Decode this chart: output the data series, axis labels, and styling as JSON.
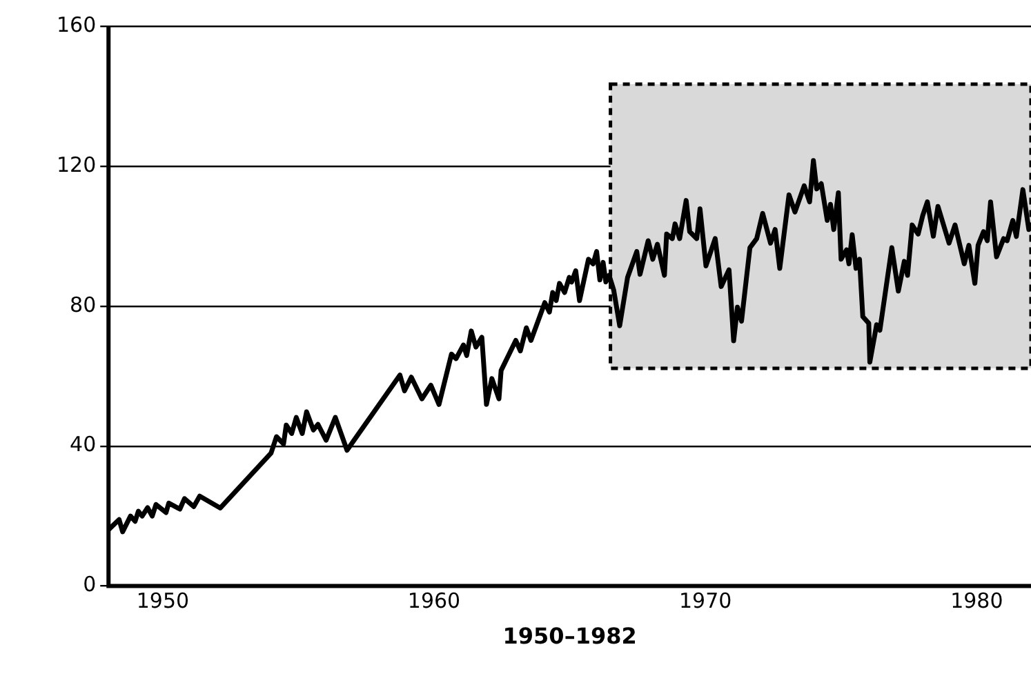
{
  "chart_data": {
    "type": "line",
    "xlabel": "1950–1982",
    "xlim": [
      1948,
      1982
    ],
    "xticks": [
      1950,
      1960,
      1970,
      1980
    ],
    "ylim": [
      0,
      160
    ],
    "yticks": [
      0,
      40,
      80,
      120,
      160
    ],
    "grid": "y",
    "bands": [
      {
        "axis": "x",
        "from": 1966.5,
        "to": 1982,
        "color": "#d9d9d9"
      }
    ],
    "legend": false,
    "marker": "none",
    "line_style": "solid",
    "series": [
      {
        "color": "#000000",
        "x": [
          1948.0,
          1948.39,
          1948.52,
          1948.81,
          1948.98,
          1949.1,
          1949.24,
          1949.44,
          1949.61,
          1949.75,
          1950.12,
          1950.22,
          1950.63,
          1950.8,
          1951.14,
          1951.36,
          1952.12,
          1953.99,
          1954.19,
          1954.45,
          1954.55,
          1954.75,
          1954.92,
          1955.14,
          1955.3,
          1955.55,
          1955.72,
          1956.02,
          1956.36,
          1956.79,
          1958.74,
          1958.91,
          1959.16,
          1959.55,
          1959.88,
          1960.18,
          1960.64,
          1960.81,
          1961.08,
          1961.2,
          1961.37,
          1961.54,
          1961.76,
          1961.93,
          1962.13,
          1962.39,
          1962.47,
          1963.01,
          1963.18,
          1963.4,
          1963.57,
          1964.08,
          1964.25,
          1964.37,
          1964.5,
          1964.62,
          1964.81,
          1964.98,
          1965.07,
          1965.22,
          1965.36,
          1965.69,
          1965.86,
          1965.99,
          1966.11,
          1966.23,
          1966.33,
          1966.45,
          1966.62,
          1966.84,
          1967.13,
          1967.47,
          1967.59,
          1967.89,
          1968.06,
          1968.23,
          1968.49,
          1968.57,
          1968.78,
          1968.88,
          1969.05,
          1969.29,
          1969.42,
          1969.68,
          1969.8,
          1970.02,
          1970.36,
          1970.58,
          1970.87,
          1971.04,
          1971.18,
          1971.33,
          1971.64,
          1971.89,
          1972.11,
          1972.4,
          1972.57,
          1972.74,
          1973.08,
          1973.3,
          1973.64,
          1973.84,
          1973.98,
          1974.1,
          1974.27,
          1974.49,
          1974.61,
          1974.73,
          1974.9,
          1975.0,
          1975.2,
          1975.29,
          1975.41,
          1975.55,
          1975.68,
          1975.8,
          1976.02,
          1976.06,
          1976.31,
          1976.43,
          1976.87,
          1977.11,
          1977.33,
          1977.45,
          1977.62,
          1977.84,
          1978.01,
          1978.18,
          1978.4,
          1978.57,
          1978.98,
          1979.2,
          1979.54,
          1979.71,
          1979.93,
          1980.05,
          1980.25,
          1980.39,
          1980.51,
          1980.73,
          1980.99,
          1981.12,
          1981.33,
          1981.46,
          1981.7,
          1981.92,
          1982.0
        ],
        "values": [
          16.1,
          19.0,
          15.5,
          20.0,
          18.5,
          21.4,
          20.0,
          22.4,
          20.0,
          23.3,
          21.0,
          23.7,
          22.0,
          25.0,
          22.7,
          25.7,
          22.3,
          38.0,
          42.7,
          40.6,
          46.0,
          43.6,
          48.2,
          43.6,
          49.8,
          44.6,
          46.2,
          41.7,
          48.2,
          38.8,
          60.3,
          55.8,
          59.7,
          53.5,
          57.4,
          51.9,
          66.3,
          65.0,
          68.9,
          65.9,
          72.9,
          68.3,
          71.1,
          51.9,
          59.3,
          53.5,
          61.6,
          70.2,
          67.2,
          73.8,
          70.2,
          81.0,
          78.3,
          83.9,
          81.6,
          86.5,
          83.9,
          88.2,
          86.9,
          90.1,
          81.6,
          93.4,
          92.1,
          95.6,
          87.5,
          92.5,
          86.9,
          88.8,
          84.6,
          74.4,
          88.2,
          95.6,
          89.1,
          98.7,
          93.4,
          97.7,
          88.8,
          100.6,
          99.3,
          103.5,
          99.3,
          110.2,
          101.3,
          99.3,
          107.8,
          91.5,
          99.3,
          85.6,
          90.4,
          70.1,
          79.7,
          75.7,
          96.7,
          99.3,
          106.5,
          98.0,
          101.9,
          90.8,
          111.8,
          106.9,
          114.4,
          109.8,
          121.6,
          113.5,
          115.0,
          104.5,
          109.1,
          101.9,
          112.4,
          93.4,
          96.1,
          92.1,
          100.4,
          90.8,
          93.4,
          77.0,
          75.1,
          64.0,
          74.7,
          73.1,
          96.7,
          84.3,
          92.8,
          88.8,
          103.2,
          100.6,
          105.9,
          109.8,
          100.0,
          108.5,
          98.0,
          103.2,
          92.1,
          97.4,
          86.5,
          97.4,
          101.3,
          98.7,
          109.8,
          94.1,
          99.3,
          98.7,
          104.5,
          99.9,
          113.3,
          101.9,
          103.0
        ]
      }
    ]
  }
}
